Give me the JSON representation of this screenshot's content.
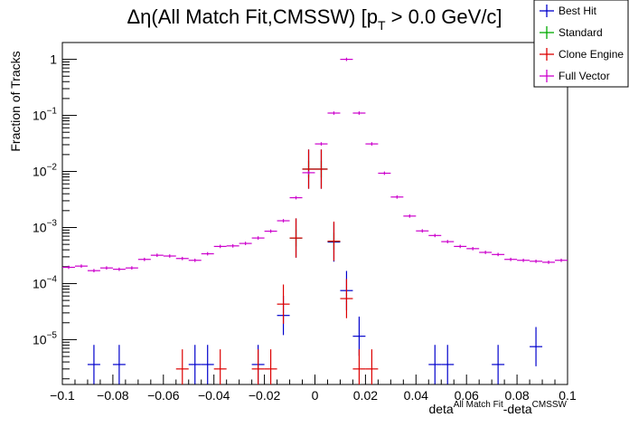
{
  "chart_data": {
    "type": "scatter",
    "title_parts": {
      "pre": "Δη(All Match Fit,CMSSW) [p",
      "sub": "T",
      "post": " > 0.0 GeV/c]"
    },
    "xlabel_parts": {
      "a": "deta",
      "a_sup": "All Match Fit",
      "b": "-deta",
      "b_sup": "CMSSW"
    },
    "ylabel": "Fraction of Tracks",
    "xlim": [
      -0.1,
      0.1
    ],
    "ylim_log10": [
      -5.8,
      0.3
    ],
    "y_scale": "log",
    "bin_half_width": 0.0025,
    "x_ticks": [
      {
        "v": -0.1,
        "label": "−0.1"
      },
      {
        "v": -0.08,
        "label": "−0.08"
      },
      {
        "v": -0.06,
        "label": "−0.06"
      },
      {
        "v": -0.04,
        "label": "−0.04"
      },
      {
        "v": -0.02,
        "label": "−0.02"
      },
      {
        "v": 0,
        "label": "0"
      },
      {
        "v": 0.02,
        "label": "0.02"
      },
      {
        "v": 0.04,
        "label": "0.04"
      },
      {
        "v": 0.06,
        "label": "0.06"
      },
      {
        "v": 0.08,
        "label": "0.08"
      },
      {
        "v": 0.1,
        "label": "0.1"
      }
    ],
    "y_ticks": [
      {
        "exp": 0,
        "base": "1",
        "sup": ""
      },
      {
        "exp": -1,
        "base": "10",
        "sup": "−1"
      },
      {
        "exp": -2,
        "base": "10",
        "sup": "−2"
      },
      {
        "exp": -3,
        "base": "10",
        "sup": "−3"
      },
      {
        "exp": -4,
        "base": "10",
        "sup": "−4"
      },
      {
        "exp": -5,
        "base": "10",
        "sup": "−5"
      }
    ],
    "grid": false,
    "legend_position": "top-right",
    "series": [
      {
        "name": "Best Hit",
        "color": "#0000cc",
        "err": 0.35,
        "points": [
          [
            -0.0875,
            3.6e-06
          ],
          [
            -0.0775,
            3.6e-06
          ],
          [
            -0.0475,
            3.6e-06
          ],
          [
            -0.0425,
            3.6e-06
          ],
          [
            -0.0225,
            3.6e-06
          ],
          [
            -0.0125,
            2.7e-05
          ],
          [
            -0.0075,
            0.00065
          ],
          [
            -0.0025,
            0.011
          ],
          [
            0.0025,
            0.011
          ],
          [
            0.0075,
            0.00055
          ],
          [
            0.0125,
            7.5e-05
          ],
          [
            0.0175,
            1.15e-05
          ],
          [
            0.0475,
            3.6e-06
          ],
          [
            0.0525,
            3.6e-06
          ],
          [
            0.0725,
            3.6e-06
          ],
          [
            0.0875,
            7.5e-06
          ]
        ]
      },
      {
        "name": "Standard",
        "color": "#00aa00",
        "err": 0.15,
        "points": [
          [
            -0.0075,
            0.00065
          ],
          [
            -0.0025,
            0.011
          ],
          [
            0.0025,
            0.011
          ],
          [
            0.0075,
            0.00057
          ]
        ]
      },
      {
        "name": "Clone Engine",
        "color": "#dd0000",
        "err": 0.35,
        "points": [
          [
            -0.0525,
            3e-06
          ],
          [
            -0.0375,
            3e-06
          ],
          [
            -0.0225,
            3e-06
          ],
          [
            -0.0175,
            3e-06
          ],
          [
            -0.0125,
            4.3e-05
          ],
          [
            -0.0075,
            0.00065
          ],
          [
            -0.0025,
            0.011
          ],
          [
            0.0025,
            0.011
          ],
          [
            0.0075,
            0.00057
          ],
          [
            0.0125,
            5.4e-05
          ],
          [
            0.0175,
            3e-06
          ],
          [
            0.0225,
            3e-06
          ]
        ]
      },
      {
        "name": "Full Vector",
        "color": "#cc00cc",
        "err": 0.03,
        "points": [
          [
            -0.0975,
            0.000195
          ],
          [
            -0.0925,
            0.000205
          ],
          [
            -0.0875,
            0.00017
          ],
          [
            -0.0825,
            0.00019
          ],
          [
            -0.0775,
            0.00018
          ],
          [
            -0.0725,
            0.00019
          ],
          [
            -0.0675,
            0.00027
          ],
          [
            -0.0625,
            0.00032
          ],
          [
            -0.0575,
            0.00031
          ],
          [
            -0.0525,
            0.00028
          ],
          [
            -0.0475,
            0.00026
          ],
          [
            -0.0425,
            0.00034
          ],
          [
            -0.0375,
            0.00046
          ],
          [
            -0.0325,
            0.00047
          ],
          [
            -0.0275,
            0.00052
          ],
          [
            -0.0225,
            0.00065
          ],
          [
            -0.0175,
            0.00086
          ],
          [
            -0.0125,
            0.00132
          ],
          [
            -0.0075,
            0.0034
          ],
          [
            -0.0025,
            0.0095
          ],
          [
            0.0025,
            0.031
          ],
          [
            0.0075,
            0.11
          ],
          [
            0.0125,
            1.0
          ],
          [
            0.0175,
            0.11
          ],
          [
            0.0225,
            0.031
          ],
          [
            0.0275,
            0.0093
          ],
          [
            0.0325,
            0.0035
          ],
          [
            0.0375,
            0.0016
          ],
          [
            0.0425,
            0.00087
          ],
          [
            0.0475,
            0.00072
          ],
          [
            0.0525,
            0.00056
          ],
          [
            0.0575,
            0.00046
          ],
          [
            0.0625,
            0.00042
          ],
          [
            0.0675,
            0.00036
          ],
          [
            0.0725,
            0.00033
          ],
          [
            0.0775,
            0.00027
          ],
          [
            0.0825,
            0.00026
          ],
          [
            0.0875,
            0.00025
          ],
          [
            0.0925,
            0.00024
          ],
          [
            0.0975,
            0.00026
          ]
        ]
      }
    ]
  }
}
